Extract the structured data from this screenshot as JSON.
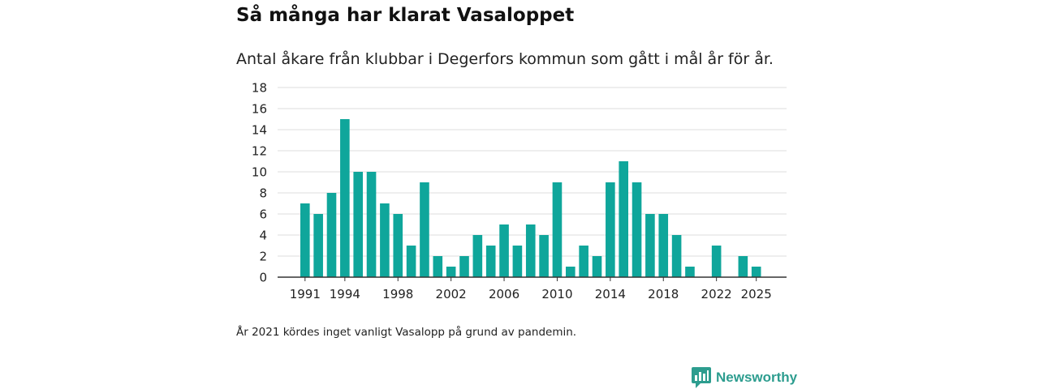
{
  "header": {
    "title": "Så många har klarat Vasaloppet",
    "subtitle": "Antal åkare från klubbar i Degerfors kommun som gått i mål år för år."
  },
  "footnote": "År 2021 kördes inget vanligt Vasalopp på grund av pandemin.",
  "brand": {
    "name": "Newsworthy"
  },
  "colors": {
    "bar": "#0fa69b",
    "grid": "#dcdcdc",
    "axis": "#333333",
    "text": "#222222",
    "brand": "#2d9d8f"
  },
  "chart_data": {
    "type": "bar",
    "title": "Så många har klarat Vasaloppet",
    "xlabel": "",
    "ylabel": "",
    "ylim": [
      0,
      18
    ],
    "yticks": [
      0,
      2,
      4,
      6,
      8,
      10,
      12,
      14,
      16,
      18
    ],
    "xticks": [
      "1991",
      "1994",
      "1998",
      "2002",
      "2006",
      "2010",
      "2014",
      "2018",
      "2022",
      "2025"
    ],
    "categories": [
      "1991",
      "1992",
      "1993",
      "1994",
      "1995",
      "1996",
      "1997",
      "1998",
      "1999",
      "2000",
      "2001",
      "2002",
      "2003",
      "2004",
      "2005",
      "2006",
      "2007",
      "2008",
      "2009",
      "2010",
      "2011",
      "2012",
      "2013",
      "2014",
      "2015",
      "2016",
      "2017",
      "2018",
      "2019",
      "2020",
      "2021",
      "2022",
      "2023",
      "2024",
      "2025"
    ],
    "values": [
      7,
      6,
      8,
      15,
      10,
      10,
      7,
      6,
      3,
      9,
      2,
      1,
      2,
      4,
      3,
      5,
      3,
      5,
      4,
      9,
      1,
      3,
      2,
      9,
      11,
      9,
      6,
      6,
      4,
      1,
      0,
      3,
      0,
      2,
      1
    ],
    "grid": true,
    "legend": "none"
  }
}
